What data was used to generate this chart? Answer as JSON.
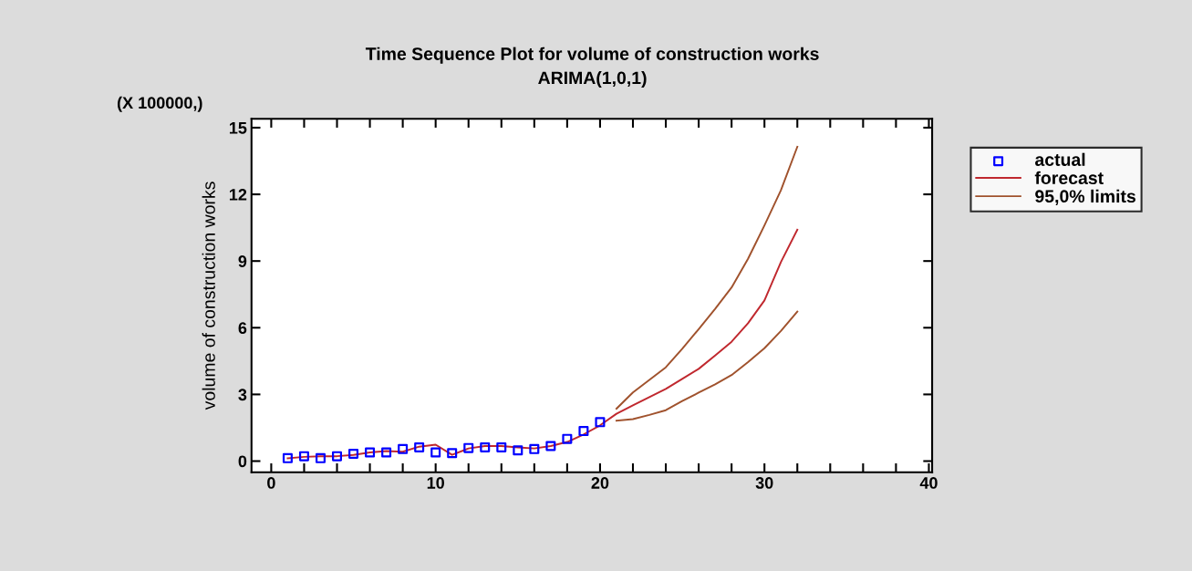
{
  "chart_data": {
    "type": "line",
    "title": "Time Sequence Plot for volume of construction works",
    "subtitle": "ARIMA(1,0,1)",
    "ylabel": "volume of construction works",
    "annotations": [
      "(X 100000,)"
    ],
    "xlim": [
      -1.2,
      40.2
    ],
    "ylim": [
      -0.5,
      15.4
    ],
    "xticks": [
      0,
      {
        "value": 2,
        "label": null
      },
      {
        "value": 4,
        "label": null
      },
      {
        "value": 6,
        "label": null
      },
      {
        "value": 8,
        "label": null
      },
      10,
      {
        "value": 12,
        "label": null
      },
      {
        "value": 14,
        "label": null
      },
      {
        "value": 16,
        "label": null
      },
      {
        "value": 18,
        "label": null
      },
      20,
      {
        "value": 22,
        "label": null
      },
      {
        "value": 24,
        "label": null
      },
      {
        "value": 26,
        "label": null
      },
      {
        "value": 28,
        "label": null
      },
      30,
      {
        "value": 32,
        "label": null
      },
      {
        "value": 34,
        "label": null
      },
      {
        "value": 36,
        "label": null
      },
      {
        "value": 38,
        "label": null
      },
      40
    ],
    "yticks": [
      0,
      3,
      6,
      9,
      12,
      15
    ],
    "grid": false,
    "legend": "right",
    "series": [
      {
        "name": "actual",
        "type": "scatter",
        "marker": "square",
        "color": "#0000ff",
        "x": [
          1,
          2,
          3,
          4,
          5,
          6,
          7,
          8,
          9,
          10,
          11,
          12,
          13,
          14,
          15,
          16,
          17,
          18,
          19,
          20
        ],
        "values": [
          0.13,
          0.22,
          0.13,
          0.22,
          0.33,
          0.39,
          0.39,
          0.54,
          0.62,
          0.39,
          0.36,
          0.59,
          0.62,
          0.62,
          0.48,
          0.54,
          0.68,
          1.0,
          1.35,
          1.75
        ]
      },
      {
        "name": "forecast",
        "color": "#c0282e",
        "x": [
          1,
          2,
          3,
          4,
          5,
          6,
          7,
          8,
          9,
          10,
          11,
          12,
          13,
          14,
          15,
          16,
          17,
          18,
          19,
          20,
          21,
          22,
          23,
          24,
          25,
          26,
          27,
          28,
          29,
          30,
          31,
          32
        ],
        "values": [
          0.13,
          0.19,
          0.22,
          0.22,
          0.28,
          0.39,
          0.45,
          0.42,
          0.65,
          0.74,
          0.28,
          0.57,
          0.68,
          0.68,
          0.62,
          0.57,
          0.68,
          0.86,
          1.2,
          1.61,
          2.13,
          2.51,
          2.88,
          3.25,
          3.7,
          4.15,
          4.75,
          5.37,
          6.2,
          7.23,
          8.95,
          10.41
        ]
      },
      {
        "name": "95,0% limits",
        "color": "#a0522d",
        "x": [
          21,
          22,
          23,
          24,
          25,
          26,
          27,
          28,
          29,
          30,
          31,
          32
        ],
        "values": [
          2.36,
          3.09,
          3.65,
          4.22,
          5.05,
          5.94,
          6.85,
          7.81,
          9.1,
          10.6,
          12.18,
          14.14
        ]
      },
      {
        "color": "#a0522d",
        "x": [
          21,
          22,
          23,
          24,
          25,
          26,
          27,
          28,
          29,
          30,
          31,
          32
        ],
        "values": [
          1.82,
          1.89,
          2.08,
          2.29,
          2.7,
          3.08,
          3.45,
          3.87,
          4.45,
          5.08,
          5.85,
          6.73
        ]
      }
    ]
  }
}
